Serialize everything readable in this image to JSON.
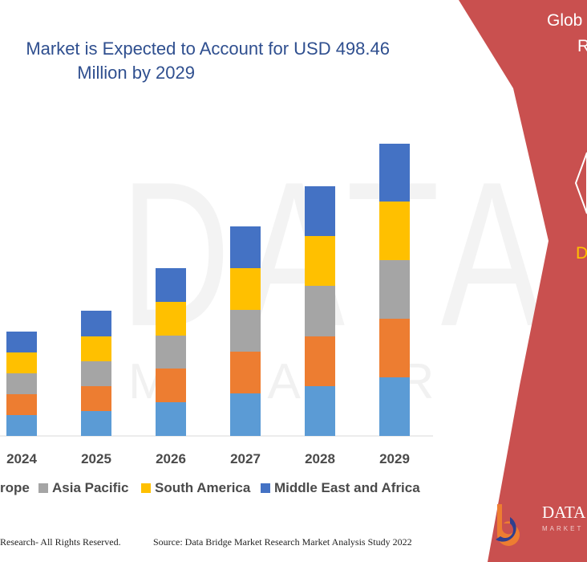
{
  "title": {
    "line1": "Market is Expected to Account for USD 498.46",
    "line2": "Million by 2029"
  },
  "watermark": {
    "main": "DATA BRI",
    "sub": "M A R K E T   R E"
  },
  "side_panel": {
    "text1": "Glob",
    "text2": "R",
    "text3": "D",
    "brand_name": "DATA B",
    "brand_tag": "MARKET",
    "color": "#c9504f"
  },
  "footer": {
    "left": "Research- All Rights Reserved.",
    "right": "Source: Data Bridge Market Research Market Analysis Study 2022"
  },
  "chart_data": {
    "type": "bar",
    "stacked": true,
    "categories": [
      "2024",
      "2025",
      "2026",
      "2027",
      "2028",
      "2029"
    ],
    "series": [
      {
        "name": "",
        "color": "#5b9bd5",
        "values": [
          26,
          31,
          42,
          53,
          62,
          73
        ]
      },
      {
        "name": "rope",
        "color": "#ed7d31",
        "values": [
          26,
          31,
          42,
          52,
          62,
          73
        ]
      },
      {
        "name": "Asia Pacific",
        "color": "#a5a5a5",
        "values": [
          26,
          31,
          41,
          52,
          63,
          73
        ]
      },
      {
        "name": "South America",
        "color": "#ffc000",
        "values": [
          26,
          31,
          42,
          52,
          62,
          73
        ]
      },
      {
        "name": "Middle East and Africa",
        "color": "#4472c4",
        "values": [
          26,
          32,
          42,
          52,
          62,
          72
        ]
      }
    ],
    "ylim": [
      0,
      365
    ],
    "grid": false,
    "legend_position": "bottom"
  }
}
